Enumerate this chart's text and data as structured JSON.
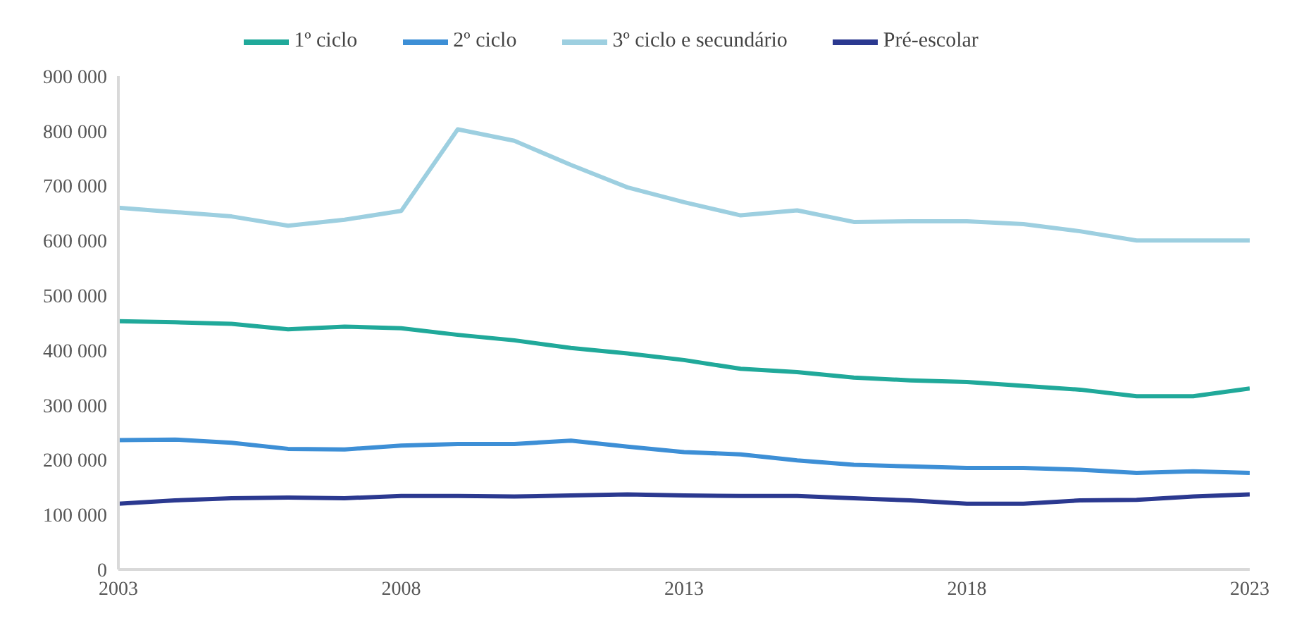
{
  "chart_data": {
    "type": "line",
    "x": [
      2003,
      2004,
      2005,
      2006,
      2007,
      2008,
      2009,
      2010,
      2011,
      2012,
      2013,
      2014,
      2015,
      2016,
      2017,
      2018,
      2019,
      2020,
      2021,
      2022,
      2023
    ],
    "series": [
      {
        "name": "Pré-escolar",
        "color": "#2b3990",
        "values": [
          120000,
          126000,
          130000,
          131000,
          130000,
          134000,
          134000,
          133000,
          135000,
          137000,
          135000,
          134000,
          134000,
          130000,
          126000,
          120000,
          120000,
          126000,
          127000,
          133000,
          137000
        ]
      },
      {
        "name": "1º ciclo",
        "color": "#20a99a",
        "values": [
          453000,
          451000,
          448000,
          438000,
          443000,
          440000,
          428000,
          418000,
          404000,
          394000,
          382000,
          366000,
          360000,
          350000,
          345000,
          342000,
          335000,
          328000,
          316000,
          316000,
          330000
        ]
      },
      {
        "name": "2º ciclo",
        "color": "#3d8fd6",
        "values": [
          236000,
          237000,
          231000,
          220000,
          219000,
          226000,
          229000,
          229000,
          235000,
          224000,
          214000,
          210000,
          199000,
          191000,
          188000,
          185000,
          185000,
          182000,
          176000,
          179000,
          176000
        ]
      },
      {
        "name": "3º ciclo e secundário",
        "color": "#9dcfe0",
        "values": [
          660000,
          652000,
          644000,
          627000,
          638000,
          654000,
          803000,
          782000,
          738000,
          697000,
          670000,
          646000,
          655000,
          634000,
          635000,
          635000,
          630000,
          617000,
          600000,
          600000,
          600000
        ]
      }
    ],
    "xlim": [
      2003,
      2023
    ],
    "xticks": [
      2003,
      2008,
      2013,
      2018,
      2023
    ],
    "ylim": [
      0,
      900000
    ],
    "yticks": [
      0,
      100000,
      200000,
      300000,
      400000,
      500000,
      600000,
      700000,
      800000,
      900000
    ],
    "grid": false,
    "legend": "top",
    "marker": "none",
    "line_style": "solid"
  }
}
